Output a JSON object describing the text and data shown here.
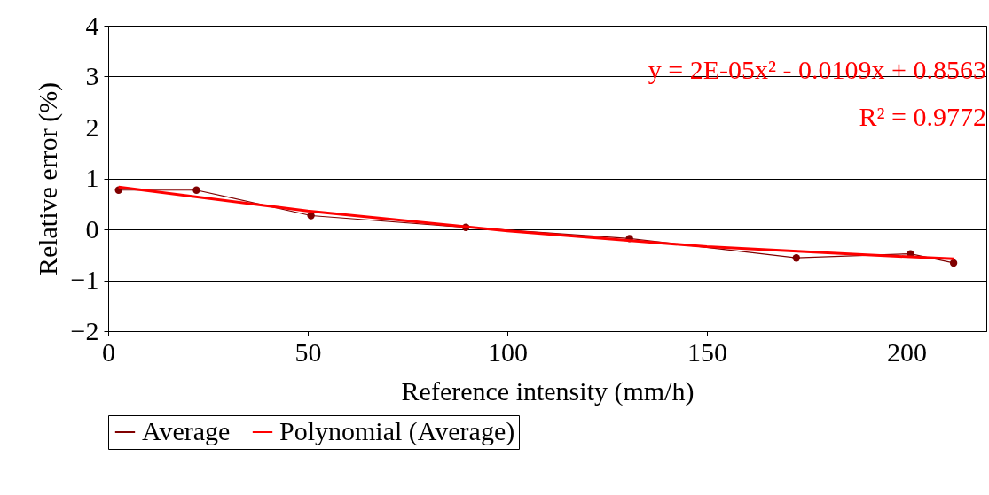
{
  "chart_data": {
    "type": "line",
    "xlabel": "Reference intensity (mm/h)",
    "ylabel": "Relative error (%)",
    "xlim": [
      0,
      220
    ],
    "xticks": [
      0,
      50,
      100,
      150,
      200
    ],
    "ylim": [
      -2,
      4
    ],
    "yticks": [
      -2,
      -1,
      0,
      1,
      2,
      3,
      4
    ],
    "grid": "y",
    "legend": "bottom",
    "annotations": [
      "y = 2E-05x² - 0.0109x + 0.8563",
      "R² = 0.9772"
    ],
    "series": [
      {
        "name": "Average",
        "color": "#800000",
        "marker": "circle",
        "x": [
          2.6,
          22.1,
          50.8,
          89.6,
          130.6,
          172.4,
          201,
          211.8
        ],
        "values": [
          0.77,
          0.77,
          0.27,
          0.04,
          -0.18,
          -0.56,
          -0.48,
          -0.66
        ]
      },
      {
        "name": "Polynomial (Average)",
        "color": "#ff0000",
        "marker": "none",
        "x": [
          2.6,
          50,
          100,
          150,
          190,
          211.8
        ],
        "values": [
          0.83,
          0.36,
          -0.03,
          -0.34,
          -0.5,
          -0.58
        ]
      }
    ]
  }
}
